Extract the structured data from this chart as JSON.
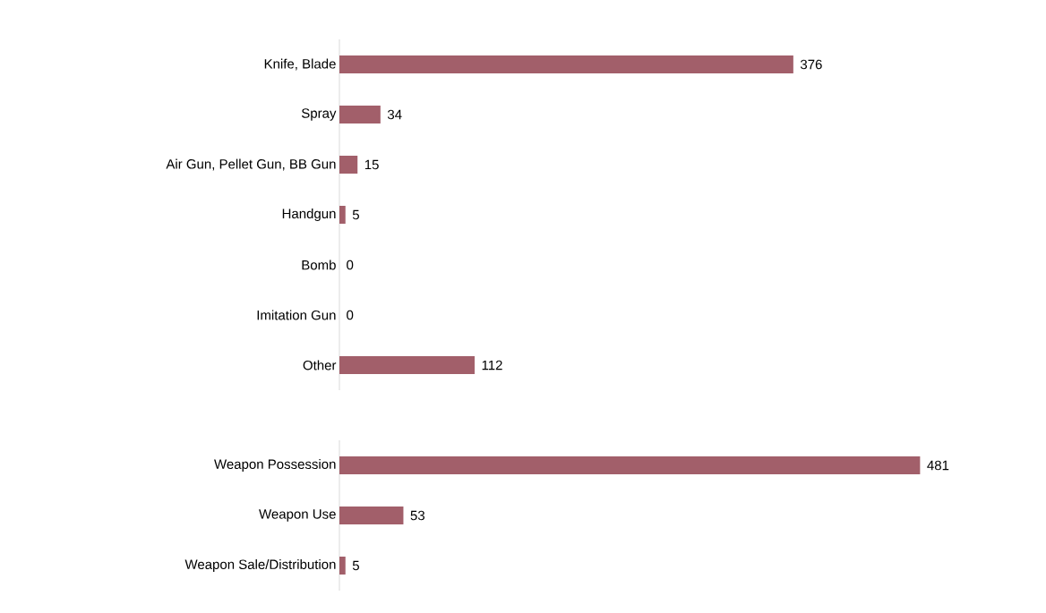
{
  "chart_data": [
    {
      "type": "bar",
      "orientation": "horizontal",
      "categories": [
        "Knife, Blade",
        "Spray",
        "Air Gun, Pellet Gun, BB Gun",
        "Handgun",
        "Bomb",
        "Imitation Gun",
        "Other"
      ],
      "values": [
        376,
        34,
        15,
        5,
        0,
        0,
        112
      ],
      "color": "#a25f6a",
      "data_labels": true,
      "tick_labels": "y"
    },
    {
      "type": "bar",
      "orientation": "horizontal",
      "categories": [
        "Weapon Possession",
        "Weapon Use",
        "Weapon Sale/Distribution"
      ],
      "values": [
        481,
        53,
        5
      ],
      "color": "#a25f6a",
      "data_labels": true,
      "tick_labels": "y"
    }
  ]
}
